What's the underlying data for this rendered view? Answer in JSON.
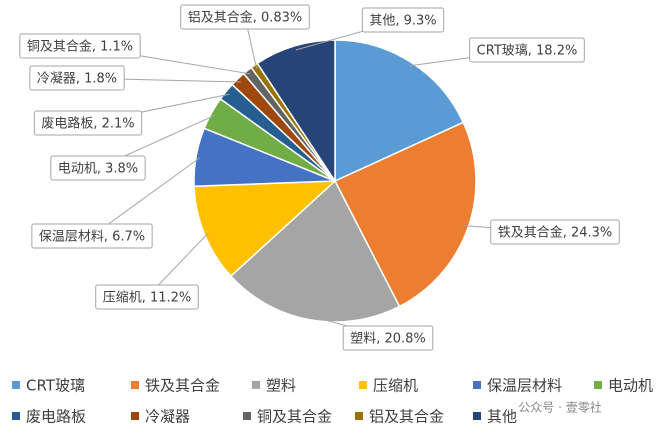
{
  "chart_data": {
    "type": "pie",
    "categories": [
      "CRT玻璃",
      "铁及其合金",
      "塑料",
      "压缩机",
      "保温层材料",
      "电动机",
      "废电路板",
      "冷凝器",
      "铜及其合金",
      "铝及其合金",
      "其他"
    ],
    "values": [
      18.2,
      24.3,
      20.8,
      11.2,
      6.7,
      3.8,
      2.1,
      1.8,
      1.1,
      0.83,
      9.3
    ],
    "value_labels": [
      "CRT玻璃, 18.2%",
      "铁及其合金, 24.3%",
      "塑料, 20.8%",
      "压缩机, 11.2%",
      "保温层材料, 6.7%",
      "电动机, 3.8%",
      "废电路板, 2.1%",
      "冷凝器, 1.8%",
      "铜及其合金, 1.1%",
      "铝及其合金, 0.83%",
      "其他, 9.3%"
    ],
    "colors": [
      "#5b9bd5",
      "#ed7d31",
      "#a5a5a5",
      "#ffc000",
      "#4472c4",
      "#70ad47",
      "#255e91",
      "#9e480e",
      "#636363",
      "#997300",
      "#264478"
    ],
    "legend": "bottom",
    "watermark": "公众号 · 壹零社"
  }
}
